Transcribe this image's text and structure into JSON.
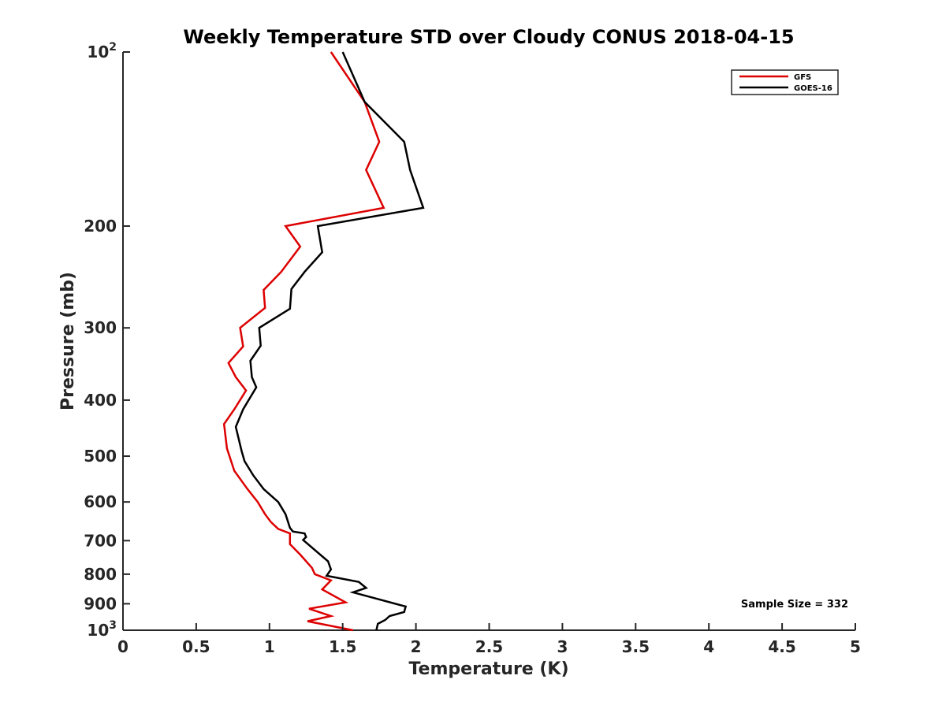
{
  "chart_data": {
    "type": "line",
    "title": "Weekly Temperature STD over Cloudy CONUS 2018-04-15",
    "xlabel": "Temperature (K)",
    "ylabel": "Pressure (mb)",
    "xlim": [
      0,
      5
    ],
    "ylim": [
      100,
      1000
    ],
    "y_scale": "log",
    "y_reversed": true,
    "x_ticks": [
      "0",
      "0.5",
      "1",
      "1.5",
      "2",
      "2.5",
      "3",
      "3.5",
      "4",
      "4.5",
      "5"
    ],
    "y_ticks": [
      {
        "value": 100,
        "base": "10",
        "exp": "2"
      },
      {
        "value": 200,
        "label": "200"
      },
      {
        "value": 300,
        "label": "300"
      },
      {
        "value": 400,
        "label": "400"
      },
      {
        "value": 500,
        "label": "500"
      },
      {
        "value": 600,
        "label": "600"
      },
      {
        "value": 700,
        "label": "700"
      },
      {
        "value": 800,
        "label": "800"
      },
      {
        "value": 900,
        "label": "900"
      },
      {
        "value": 1000,
        "base": "10",
        "exp": "3"
      }
    ],
    "grid": false,
    "legend_position": "top-right",
    "annotation": "Sample Size = 332",
    "series": [
      {
        "name": "GFS",
        "color": "#dd0000",
        "points": [
          [
            1.42,
            100
          ],
          [
            1.65,
            122
          ],
          [
            1.75,
            143
          ],
          [
            1.66,
            160
          ],
          [
            1.78,
            186
          ],
          [
            1.11,
            200
          ],
          [
            1.21,
            217
          ],
          [
            1.08,
            240
          ],
          [
            0.96,
            258
          ],
          [
            0.97,
            277
          ],
          [
            0.8,
            300
          ],
          [
            0.82,
            323
          ],
          [
            0.72,
            345
          ],
          [
            0.77,
            365
          ],
          [
            0.84,
            385
          ],
          [
            0.76,
            415
          ],
          [
            0.69,
            440
          ],
          [
            0.71,
            485
          ],
          [
            0.76,
            530
          ],
          [
            0.85,
            570
          ],
          [
            0.92,
            600
          ],
          [
            0.97,
            630
          ],
          [
            1.01,
            650
          ],
          [
            1.06,
            668
          ],
          [
            1.14,
            680
          ],
          [
            1.14,
            710
          ],
          [
            1.21,
            740
          ],
          [
            1.29,
            780
          ],
          [
            1.31,
            800
          ],
          [
            1.42,
            820
          ],
          [
            1.36,
            850
          ],
          [
            1.52,
            895
          ],
          [
            1.27,
            918
          ],
          [
            1.42,
            945
          ],
          [
            1.26,
            965
          ],
          [
            1.57,
            1000
          ]
        ]
      },
      {
        "name": "GOES-16",
        "color": "#000000",
        "points": [
          [
            1.5,
            100
          ],
          [
            1.65,
            122
          ],
          [
            1.92,
            143
          ],
          [
            1.96,
            160
          ],
          [
            2.05,
            186
          ],
          [
            1.33,
            200
          ],
          [
            1.36,
            222
          ],
          [
            1.24,
            240
          ],
          [
            1.15,
            257
          ],
          [
            1.14,
            278
          ],
          [
            0.93,
            300
          ],
          [
            0.94,
            322
          ],
          [
            0.87,
            342
          ],
          [
            0.88,
            365
          ],
          [
            0.91,
            380
          ],
          [
            0.82,
            415
          ],
          [
            0.77,
            445
          ],
          [
            0.81,
            490
          ],
          [
            0.83,
            510
          ],
          [
            0.89,
            540
          ],
          [
            0.96,
            570
          ],
          [
            1.06,
            600
          ],
          [
            1.11,
            630
          ],
          [
            1.14,
            665
          ],
          [
            1.16,
            675
          ],
          [
            1.24,
            680
          ],
          [
            1.25,
            690
          ],
          [
            1.23,
            698
          ],
          [
            1.4,
            760
          ],
          [
            1.42,
            785
          ],
          [
            1.39,
            805
          ],
          [
            1.61,
            825
          ],
          [
            1.66,
            845
          ],
          [
            1.57,
            860
          ],
          [
            1.93,
            910
          ],
          [
            1.92,
            930
          ],
          [
            1.82,
            945
          ],
          [
            1.79,
            960
          ],
          [
            1.74,
            975
          ],
          [
            1.73,
            1000
          ]
        ]
      }
    ]
  }
}
